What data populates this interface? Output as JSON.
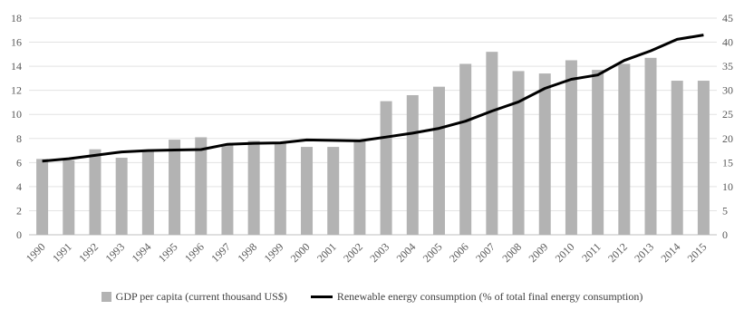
{
  "chart_data": {
    "type": "bar",
    "categories": [
      "1990",
      "1991",
      "1992",
      "1993",
      "1994",
      "1995",
      "1996",
      "1997",
      "1998",
      "1999",
      "2000",
      "2001",
      "2002",
      "2003",
      "2004",
      "2005",
      "2006",
      "2007",
      "2008",
      "2009",
      "2010",
      "2011",
      "2012",
      "2013",
      "2014",
      "2015"
    ],
    "series": [
      {
        "name": "GDP per capita (current thousand US$)",
        "type": "bar",
        "axis": "left",
        "color": "#b3b3b3",
        "values": [
          6.3,
          6.2,
          7.1,
          6.4,
          7.0,
          7.9,
          8.1,
          7.5,
          7.8,
          7.6,
          7.3,
          7.3,
          7.8,
          11.1,
          11.6,
          12.3,
          14.2,
          15.2,
          13.6,
          13.4,
          14.5,
          13.7,
          14.2,
          14.7,
          12.8,
          12.8
        ]
      },
      {
        "name": "Renewable energy consumption (% of total final energy consumption)",
        "type": "line",
        "axis": "right",
        "color": "#000000",
        "values": [
          15.3,
          15.8,
          16.5,
          17.2,
          17.5,
          17.6,
          17.7,
          18.8,
          19.0,
          19.1,
          19.7,
          19.6,
          19.5,
          20.3,
          21.1,
          22.1,
          23.6,
          25.7,
          27.6,
          30.4,
          32.3,
          33.2,
          36.2,
          38.2,
          40.6,
          41.5
        ]
      }
    ],
    "y_left": {
      "min": 0,
      "max": 18,
      "ticks": [
        "0",
        "2",
        "4",
        "6",
        "8",
        "10",
        "12",
        "14",
        "16",
        "18"
      ]
    },
    "y_right": {
      "min": 0,
      "max": 45,
      "ticks": [
        "0",
        "5",
        "10",
        "15",
        "20",
        "25",
        "30",
        "35",
        "40",
        "45"
      ]
    },
    "grid": true,
    "legend_position": "bottom"
  },
  "legend": {
    "bar_label": "GDP per capita (current thousand US$)",
    "line_label": "Renewable energy consumption (% of total final energy consumption)"
  }
}
